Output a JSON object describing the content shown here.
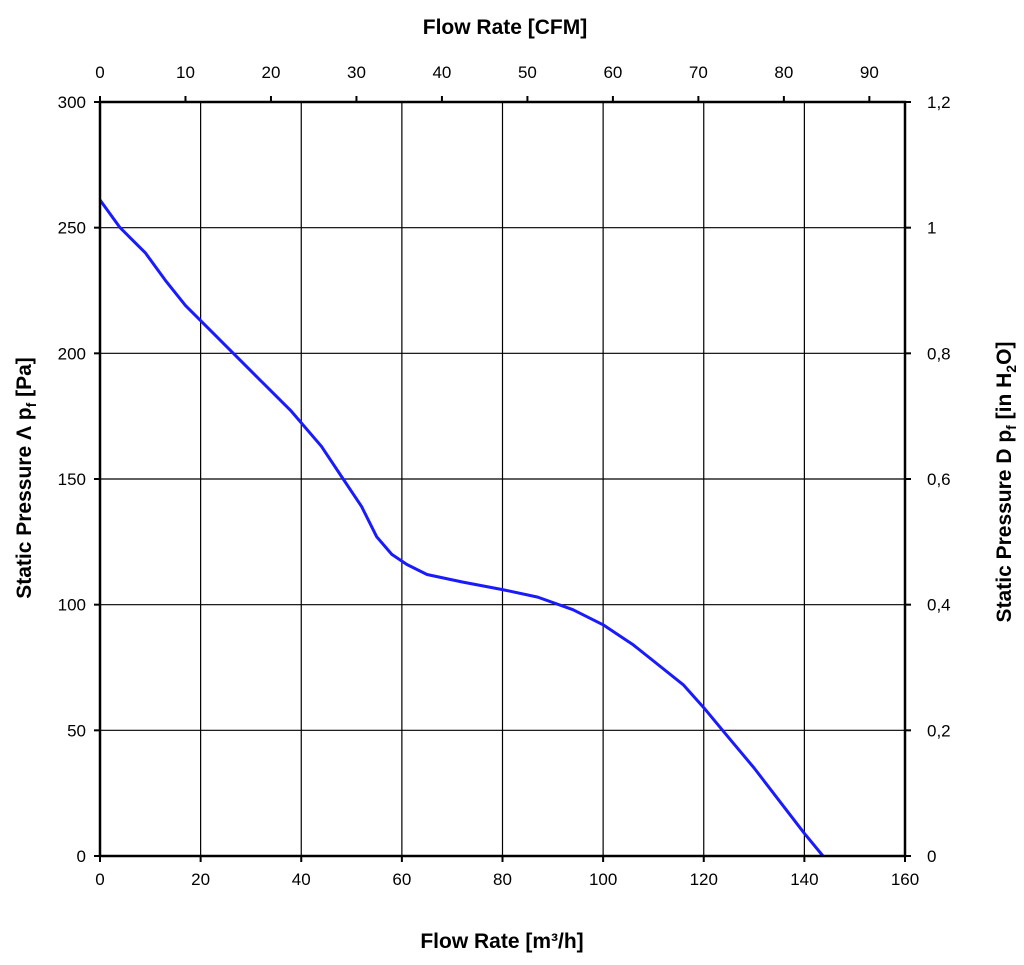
{
  "chart_data": {
    "type": "line",
    "title": "",
    "xlabel": "Flow Rate [m³/h]",
    "x2label": "Flow Rate [CFM]",
    "ylabel": {
      "prefix": "Static Pressure Λ p",
      "sub": "f",
      "suffix": " [Pa]"
    },
    "y2label": {
      "prefix": "Static Pressure D p",
      "sub": "f",
      "mid": " [in H",
      "sub2": "2",
      "suffix": "O]"
    },
    "xlim": [
      0,
      160
    ],
    "ylim": [
      0,
      300
    ],
    "x2lim": [
      0,
      94.17
    ],
    "y2lim": [
      0,
      1.2
    ],
    "x_ticks": [
      "0",
      "20",
      "40",
      "60",
      "80",
      "100",
      "120",
      "140",
      "160"
    ],
    "y_ticks": [
      "0",
      "50",
      "100",
      "150",
      "200",
      "250",
      "300"
    ],
    "x2_ticks": [
      "0",
      "10",
      "20",
      "30",
      "40",
      "50",
      "60",
      "70",
      "80",
      "90"
    ],
    "y2_ticks": [
      "0",
      "0,2",
      "0,4",
      "0,6",
      "0,8",
      "1",
      "1,2"
    ],
    "grid": true,
    "series": [
      {
        "color": "#1a1aff",
        "x": [
          0,
          4,
          9,
          13,
          17,
          22,
          27,
          32,
          38,
          44,
          48,
          52,
          55,
          58,
          61,
          65,
          72,
          80,
          87,
          94,
          100,
          106,
          111,
          116,
          120,
          125,
          130,
          135,
          140,
          143.7
        ],
        "y": [
          261,
          250,
          240,
          229,
          219,
          209,
          199,
          189,
          177,
          163,
          151,
          139,
          127,
          120,
          116,
          112,
          109,
          106,
          103,
          98,
          92,
          84,
          76,
          68,
          59,
          47,
          35,
          22,
          9,
          0
        ]
      }
    ]
  }
}
